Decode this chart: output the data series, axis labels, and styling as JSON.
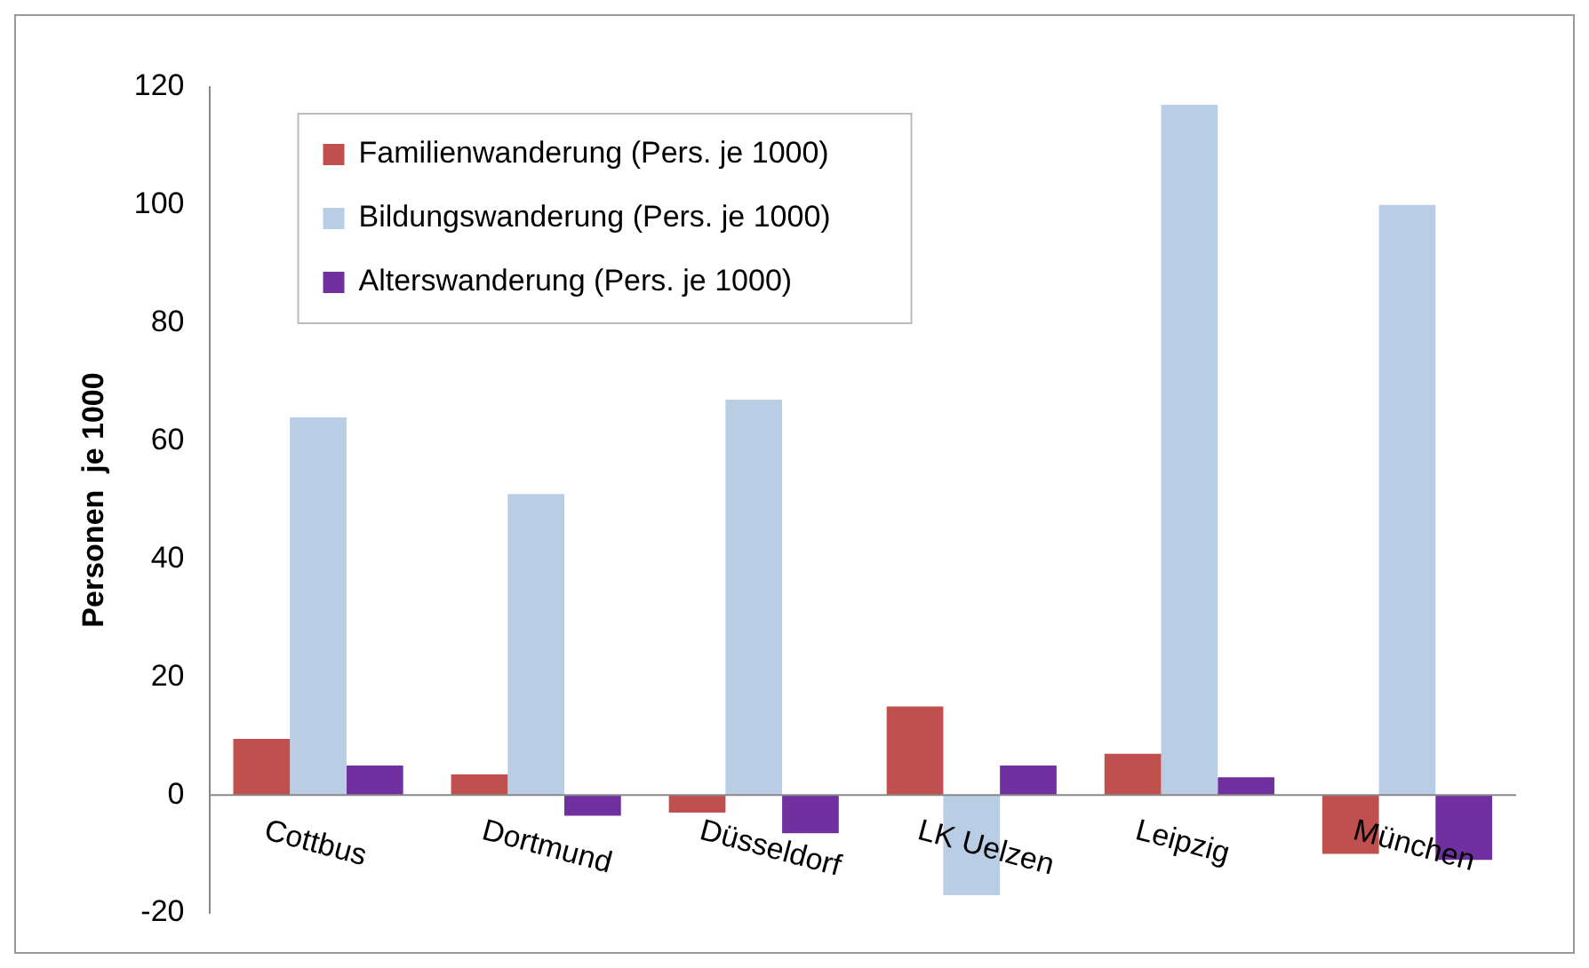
{
  "chart_data": {
    "type": "bar",
    "ylabel": "Personen  je 1000",
    "categories": [
      "Cottbus",
      "Dortmund",
      "Düsseldorf",
      "LK Uelzen",
      "Leipzig",
      "München"
    ],
    "series": [
      {
        "name": "Familienwanderung (Pers. je 1000)",
        "color": "#c0504d",
        "values": [
          9.5,
          3.5,
          -3,
          15,
          7,
          -10
        ]
      },
      {
        "name": "Bildungswanderung (Pers. je 1000)",
        "color": "#b9cde5",
        "values": [
          64,
          51,
          67,
          -17,
          117,
          100
        ]
      },
      {
        "name": "Alterswanderung (Pers. je 1000)",
        "color": "#7030a0",
        "values": [
          5,
          -3.5,
          -6.5,
          5,
          3,
          -11
        ]
      }
    ],
    "ylim": [
      -20,
      120
    ],
    "yticks": [
      -20,
      0,
      20,
      40,
      60,
      80,
      100,
      120
    ],
    "grid": false,
    "legend": "top left"
  }
}
